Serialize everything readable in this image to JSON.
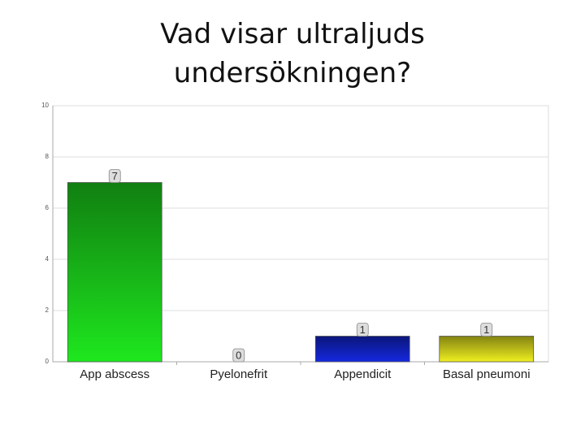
{
  "chart_data": {
    "type": "bar",
    "title": "Vad visar ultraljuds undersökningen?",
    "categories": [
      "App abscess",
      "Pyelonefrit",
      "Appendicit",
      "Basal pneumoni"
    ],
    "values": [
      7,
      0,
      1,
      1
    ],
    "colors": [
      "#1ee81e",
      "#cccccc",
      "#1428e0",
      "#f0f020"
    ],
    "ylim": [
      0,
      10
    ],
    "yticks": [
      0,
      2,
      4,
      6,
      8,
      10
    ],
    "grid": true
  }
}
